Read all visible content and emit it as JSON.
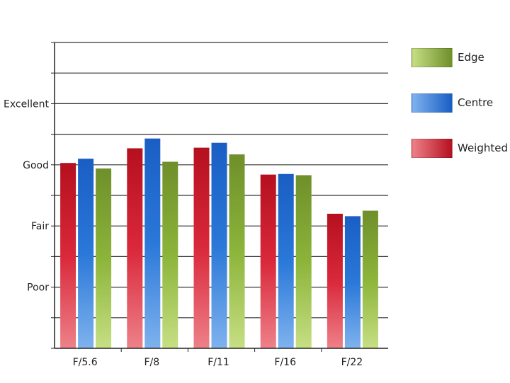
{
  "chart_data": {
    "type": "bar",
    "title": "",
    "xlabel": "",
    "ylabel": "",
    "categories": [
      "F/5.6",
      "F/8",
      "F/11",
      "F/16",
      "F/22"
    ],
    "y_tick_labels": [
      {
        "label": "Poor",
        "value": 1
      },
      {
        "label": "Fair",
        "value": 2
      },
      {
        "label": "Good",
        "value": 3
      },
      {
        "label": "Excellent",
        "value": 4
      }
    ],
    "ylim": [
      0,
      5
    ],
    "grid": "horizontal",
    "legend_position": "right",
    "series": [
      {
        "name": "Weighted",
        "color": "#d9283a",
        "values": [
          3.03,
          3.27,
          3.28,
          2.84,
          2.2
        ]
      },
      {
        "name": "Centre",
        "color": "#2a78d8",
        "values": [
          3.1,
          3.43,
          3.36,
          2.85,
          2.16
        ]
      },
      {
        "name": "Edge",
        "color": "#8cb43a",
        "values": [
          2.94,
          3.05,
          3.17,
          2.83,
          2.25
        ]
      }
    ],
    "legend_order": [
      "Edge",
      "Centre",
      "Weighted"
    ]
  }
}
